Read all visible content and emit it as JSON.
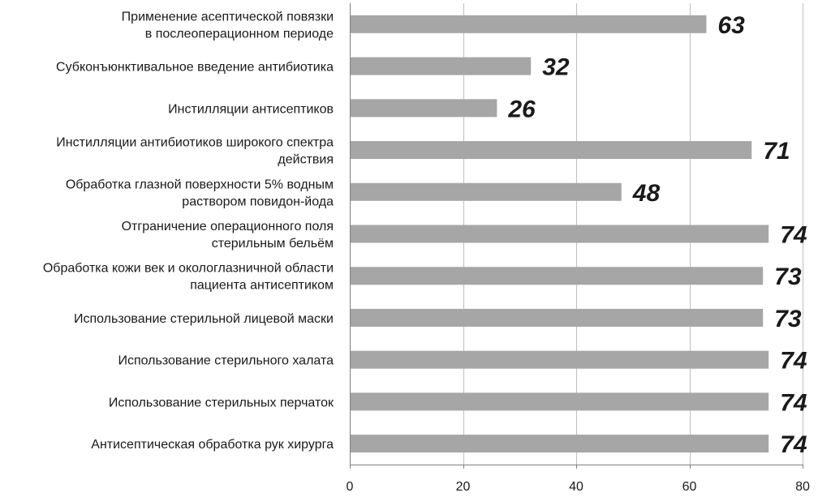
{
  "chart_data": {
    "type": "bar",
    "orientation": "horizontal",
    "categories": [
      [
        "Применение асептической повязки",
        "в послеоперационном периоде"
      ],
      [
        "Субконъюнктивальное введение антибиотика"
      ],
      [
        "Инстилляции антисептиков"
      ],
      [
        "Инстилляции антибиотиков широкого спектра",
        "действия"
      ],
      [
        "Обработка глазной поверхности 5% водным",
        "раствором повидон-йода"
      ],
      [
        "Отграничение операционного поля",
        "стерильным бельём"
      ],
      [
        "Обработка кожи век и окологлазничной области",
        "пациента антисептиком"
      ],
      [
        "Использование стерильной лицевой маски"
      ],
      [
        "Использование стерильного халата"
      ],
      [
        "Использование стерильных перчаток"
      ],
      [
        "Антисептическая обработка рук хирурга"
      ]
    ],
    "values": [
      63,
      32,
      26,
      71,
      48,
      74,
      73,
      73,
      74,
      74,
      74
    ],
    "data_labels": [
      "63",
      "32",
      "26",
      "71",
      "48",
      "74",
      "73",
      "73",
      "74",
      "74",
      "74"
    ],
    "xlim": [
      0,
      80
    ],
    "xticks": [
      0,
      20,
      40,
      60,
      80
    ],
    "xtick_labels": [
      "0",
      "20",
      "40",
      "60",
      "80"
    ],
    "grid": "vertical",
    "legend": "none",
    "title": "",
    "xlabel": "",
    "ylabel": "",
    "bar_color": "#a6a6a6",
    "grid_color": "#bfbfbf",
    "text_color": "#1a1a1a"
  }
}
